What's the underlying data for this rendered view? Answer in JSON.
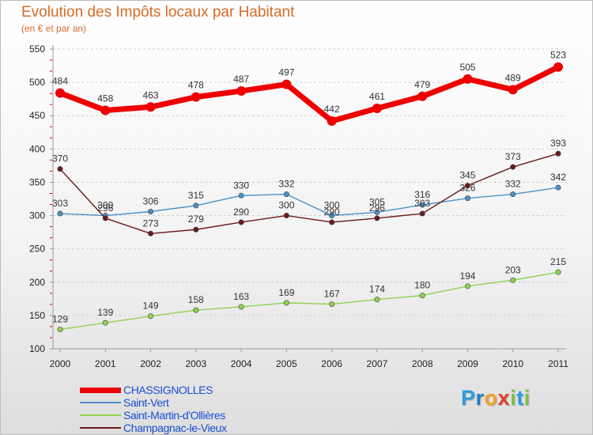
{
  "title": "Evolution des Impôts locaux par Habitant",
  "subtitle": "(en € et par an)",
  "logo": {
    "text": "Proxiti",
    "letters": [
      {
        "ch": "P",
        "color": "#2e9be0"
      },
      {
        "ch": "r",
        "color": "#1e7fc6"
      },
      {
        "ch": "o",
        "color": "#f2a12a"
      },
      {
        "ch": "x",
        "color": "#e23c2e"
      },
      {
        "ch": "i",
        "color": "#7cc242"
      },
      {
        "ch": "t",
        "color": "#2e9be0"
      },
      {
        "ch": "i",
        "color": "#7cc242"
      }
    ]
  },
  "chart_data": {
    "type": "line",
    "title": "Evolution des Impôts locaux par Habitant",
    "subtitle": "(en € et par an)",
    "xlabel": "",
    "ylabel": "",
    "x": [
      "2000",
      "2001",
      "2002",
      "2003",
      "2004",
      "2005",
      "2006",
      "2007",
      "2008",
      "2009",
      "2010",
      "2011"
    ],
    "ylim": [
      100,
      550
    ],
    "yticks": [
      100,
      150,
      200,
      250,
      300,
      350,
      400,
      450,
      500,
      550
    ],
    "grid": "horizontal dashed",
    "legend_position": "bottom-left",
    "series": [
      {
        "name": "CHASSIGNOLLES",
        "color": "#ee0000",
        "values": [
          484,
          458,
          463,
          478,
          487,
          497,
          442,
          461,
          479,
          505,
          489,
          523
        ]
      },
      {
        "name": "Saint-Vert",
        "color": "#4a90c8",
        "values": [
          303,
          300,
          306,
          315,
          330,
          332,
          300,
          305,
          316,
          326,
          332,
          342
        ]
      },
      {
        "name": "Saint-Martin-d'Ollières",
        "color": "#8fd14f",
        "values": [
          129,
          139,
          149,
          158,
          163,
          169,
          167,
          174,
          180,
          194,
          203,
          215
        ]
      },
      {
        "name": "Champagnac-le-Vieux",
        "color": "#6b1a1a",
        "values": [
          370,
          296,
          273,
          279,
          290,
          300,
          290,
          296,
          303,
          345,
          373,
          393
        ]
      }
    ]
  }
}
